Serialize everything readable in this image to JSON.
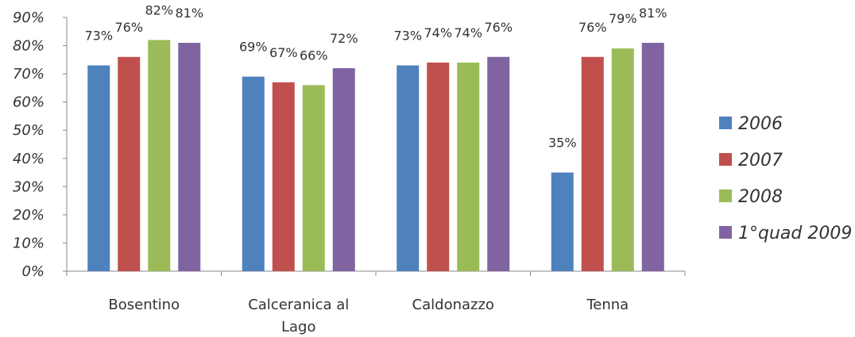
{
  "chart_data": {
    "type": "bar",
    "categories": [
      "Bosentino",
      "Calceranica al Lago",
      "Caldonazzo",
      "Tenna"
    ],
    "series": [
      {
        "name": "2006",
        "values": [
          73,
          69,
          73,
          35
        ],
        "color": "#4F81BD"
      },
      {
        "name": "2007",
        "values": [
          76,
          67,
          74,
          76
        ],
        "color": "#C0504D"
      },
      {
        "name": "2008",
        "values": [
          82,
          66,
          74,
          79
        ],
        "color": "#9BBB59"
      },
      {
        "name": "1°quad 2009",
        "values": [
          81,
          72,
          76,
          81
        ],
        "color": "#8064A2"
      }
    ],
    "ylim": [
      0,
      90
    ],
    "yticks": [
      0,
      10,
      20,
      30,
      40,
      50,
      60,
      70,
      80,
      90
    ],
    "value_suffix": "%",
    "grid": false,
    "legend": "right"
  }
}
